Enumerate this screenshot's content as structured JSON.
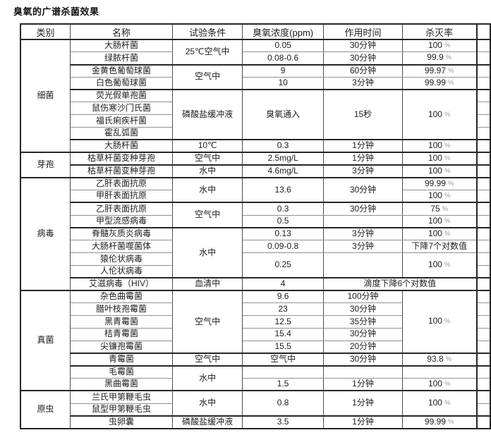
{
  "title": "臭氧的广谱杀菌效果",
  "table": {
    "headers": [
      "类别",
      "名称",
      "试验条件",
      "臭氧浓度(ppm)",
      "作用时间",
      "杀灭率"
    ],
    "rows": [
      {
        "cells": [
          {
            "v": "细菌",
            "rs": 9,
            "cat": true
          },
          {
            "v": "大肠杆菌"
          },
          {
            "v": "25℃空气中",
            "rs": 2
          },
          {
            "v": "0.05"
          },
          {
            "v": "30分钟"
          },
          {
            "v": "100%"
          }
        ]
      },
      {
        "cells": [
          {
            "v": "绿脓杆菌"
          },
          {
            "v": "0.08-0.6"
          },
          {
            "v": "30分钟"
          },
          {
            "v": "99.9%"
          }
        ]
      },
      {
        "cells": [
          {
            "v": "金黄色葡萄球菌"
          },
          {
            "v": "空气中",
            "rs": 2
          },
          {
            "v": "9"
          },
          {
            "v": "60分钟"
          },
          {
            "v": "99.97%"
          }
        ]
      },
      {
        "cells": [
          {
            "v": "白色葡萄球菌"
          },
          {
            "v": "10"
          },
          {
            "v": "3分钟"
          },
          {
            "v": "99.99%"
          }
        ]
      },
      {
        "cells": [
          {
            "v": "荧光假单孢菌"
          },
          {
            "v": "磷酸盐缓冲液",
            "rs": 4
          },
          {
            "v": "臭氧通入",
            "rs": 4
          },
          {
            "v": "15秒",
            "rs": 4
          },
          {
            "v": "100%",
            "rs": 4
          }
        ]
      },
      {
        "cells": [
          {
            "v": "鼠伤寒沙门氏菌"
          }
        ]
      },
      {
        "cells": [
          {
            "v": "福氏痢疾杆菌"
          }
        ]
      },
      {
        "cells": [
          {
            "v": "霍乱弧菌"
          }
        ]
      },
      {
        "cells": [
          {
            "v": "大肠杆菌"
          },
          {
            "v": "10℃"
          },
          {
            "v": "0.3"
          },
          {
            "v": "1分钟"
          },
          {
            "v": "100%"
          }
        ]
      },
      {
        "cells": [
          {
            "v": "芽孢",
            "rs": 2,
            "cat": true
          },
          {
            "v": "枯草杆菌变种芽孢"
          },
          {
            "v": "空气中"
          },
          {
            "v": "2.5mg/L"
          },
          {
            "v": "1分钟"
          },
          {
            "v": "100%"
          }
        ]
      },
      {
        "cells": [
          {
            "v": "枯草杆菌变种芽孢"
          },
          {
            "v": "水中"
          },
          {
            "v": "4.6mg/L"
          },
          {
            "v": "3分钟"
          },
          {
            "v": "100%"
          }
        ]
      },
      {
        "cells": [
          {
            "v": "病毒",
            "rs": 9,
            "cat": true
          },
          {
            "v": "乙肝表面抗原"
          },
          {
            "v": "水中",
            "rs": 2
          },
          {
            "v": "13.6",
            "rs": 2
          },
          {
            "v": "30分钟",
            "rs": 2
          },
          {
            "v": "99.99%"
          }
        ]
      },
      {
        "cells": [
          {
            "v": "甲肝表面抗原"
          },
          {
            "v": "100%"
          }
        ]
      },
      {
        "cells": [
          {
            "v": "乙肝表面抗原"
          },
          {
            "v": "空气中",
            "rs": 2
          },
          {
            "v": "0.3"
          },
          {
            "v": "30分钟"
          },
          {
            "v": "75%"
          }
        ]
      },
      {
        "cells": [
          {
            "v": "甲型流感病毒"
          },
          {
            "v": "0.5"
          },
          {
            "v": ""
          },
          {
            "v": "100%"
          }
        ]
      },
      {
        "cells": [
          {
            "v": "脊髓灰质炎病毒"
          },
          {
            "v": "水中",
            "rs": 4
          },
          {
            "v": "0.13"
          },
          {
            "v": "3分钟"
          },
          {
            "v": "100%"
          }
        ]
      },
      {
        "cells": [
          {
            "v": "大肠杆菌噬菌体"
          },
          {
            "v": "0.09-0.8"
          },
          {
            "v": "3分钟"
          },
          {
            "v": "下降7个对数值"
          }
        ]
      },
      {
        "cells": [
          {
            "v": "猿伦状病毒"
          },
          {
            "v": "0.25",
            "rs": 2
          },
          {
            "v": "",
            "rs": 2
          },
          {
            "v": "100%",
            "rs": 2
          }
        ]
      },
      {
        "cells": [
          {
            "v": "人伦状病毒"
          }
        ]
      },
      {
        "cells": [
          {
            "v": "艾滋病毒（HIV）"
          },
          {
            "v": "血清中"
          },
          {
            "v": "4"
          },
          {
            "v": "滴度下降6个对数值",
            "cs": 2
          }
        ]
      },
      {
        "cells": [
          {
            "v": "真菌",
            "rs": 8,
            "cat": true
          },
          {
            "v": "杂色曲霉菌"
          },
          {
            "v": "空气中",
            "rs": 5
          },
          {
            "v": "9.6"
          },
          {
            "v": "100分钟"
          },
          {
            "v": "100%",
            "rs": 5
          }
        ]
      },
      {
        "cells": [
          {
            "v": "腊叶枝孢霉菌"
          },
          {
            "v": "23"
          },
          {
            "v": "30分钟"
          }
        ]
      },
      {
        "cells": [
          {
            "v": "黑青霉菌"
          },
          {
            "v": "12.5"
          },
          {
            "v": "35分钟"
          }
        ]
      },
      {
        "cells": [
          {
            "v": "桔青霉菌"
          },
          {
            "v": "15.4"
          },
          {
            "v": "30分钟"
          }
        ]
      },
      {
        "cells": [
          {
            "v": "尖镰孢霉菌"
          },
          {
            "v": "15.5"
          },
          {
            "v": "20分钟"
          }
        ]
      },
      {
        "cells": [
          {
            "v": "青霉菌"
          },
          {
            "v": "空气中"
          },
          {
            "v": "空气中"
          },
          {
            "v": "30分钟"
          },
          {
            "v": "93.8%"
          }
        ]
      },
      {
        "cells": [
          {
            "v": "毛霉菌"
          },
          {
            "v": "水中",
            "rs": 2
          },
          {
            "v": ""
          },
          {
            "v": ""
          },
          {
            "v": ""
          }
        ]
      },
      {
        "cells": [
          {
            "v": "黑曲霉菌"
          },
          {
            "v": "1.5"
          },
          {
            "v": "1分钟"
          },
          {
            "v": "100%"
          }
        ]
      },
      {
        "cells": [
          {
            "v": "原虫",
            "rs": 3,
            "cat": true
          },
          {
            "v": "兰氏甲第鞭毛虫"
          },
          {
            "v": "水中",
            "rs": 2
          },
          {
            "v": "0.8",
            "rs": 2
          },
          {
            "v": "1分钟",
            "rs": 2
          },
          {
            "v": "100%",
            "rs": 2
          }
        ]
      },
      {
        "cells": [
          {
            "v": "鼠型甲第鞭毛虫"
          }
        ]
      },
      {
        "cells": [
          {
            "v": "虫卵囊"
          },
          {
            "v": "磷酸盐缓冲液"
          },
          {
            "v": "3.5"
          },
          {
            "v": "1分钟"
          },
          {
            "v": "99.99%"
          }
        ]
      }
    ]
  }
}
